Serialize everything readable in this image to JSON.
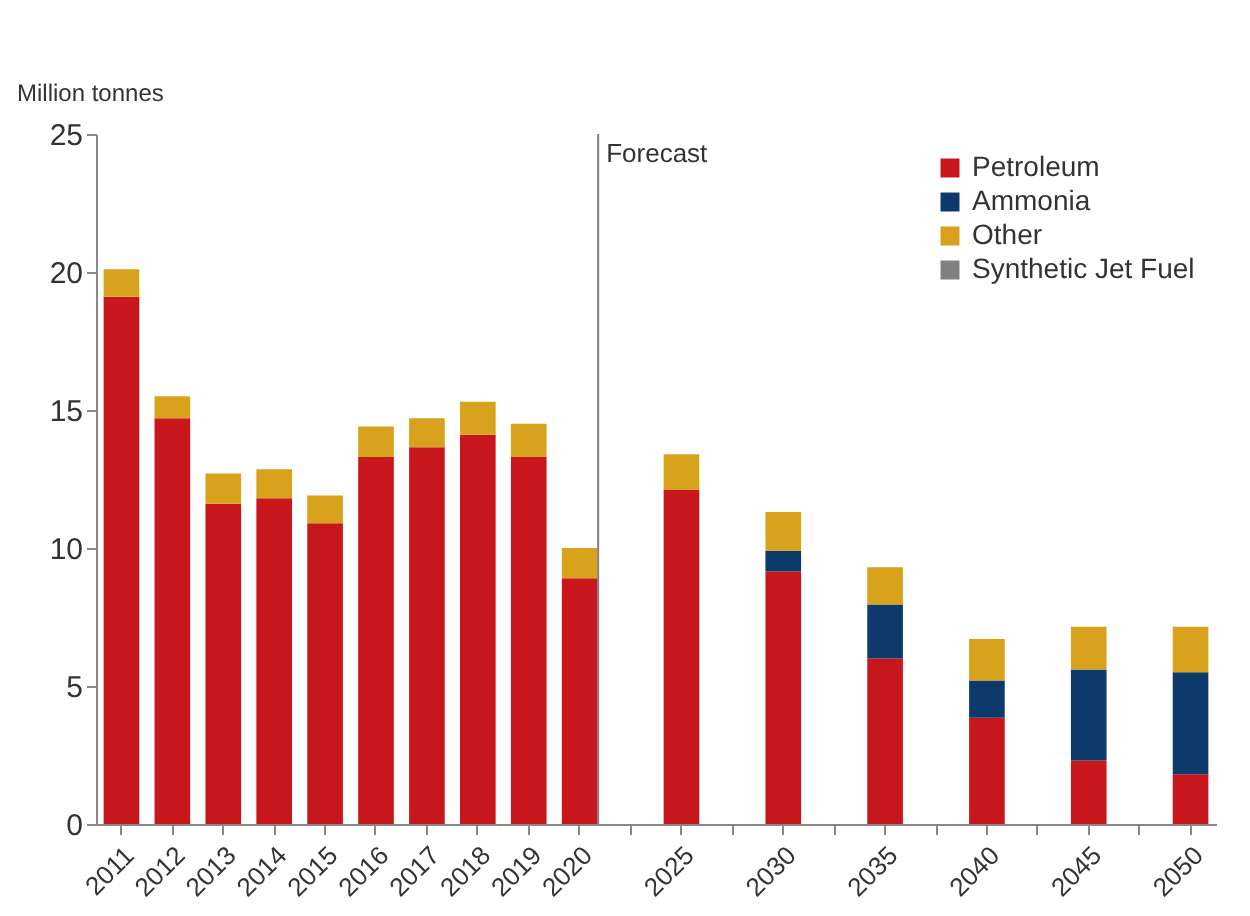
{
  "chart_data": {
    "type": "bar",
    "stacked": true,
    "ylabel": "Million tonnes",
    "categories": [
      "2011",
      "2012",
      "2013",
      "2014",
      "2015",
      "2016",
      "2017",
      "2018",
      "2019",
      "2020",
      null,
      "2025",
      null,
      "2030",
      null,
      "2035",
      null,
      "2040",
      null,
      "2045",
      null,
      "2050"
    ],
    "series": [
      {
        "name": "Petroleum",
        "color": "#c8161d",
        "values": [
          19.1,
          14.7,
          11.6,
          11.8,
          10.9,
          13.3,
          13.65,
          14.1,
          13.3,
          8.9,
          null,
          12.1,
          null,
          9.15,
          null,
          6.0,
          null,
          3.85,
          null,
          2.3,
          null,
          1.8
        ]
      },
      {
        "name": "Ammonia",
        "color": "#0c3a6b",
        "values": [
          null,
          null,
          null,
          null,
          null,
          null,
          null,
          null,
          null,
          null,
          null,
          null,
          null,
          0.75,
          null,
          1.95,
          null,
          1.35,
          null,
          3.3,
          null,
          3.7
        ]
      },
      {
        "name": "Other",
        "color": "#d8a21c",
        "values": [
          1.0,
          0.8,
          1.1,
          1.05,
          1.0,
          1.1,
          1.05,
          1.2,
          1.2,
          1.1,
          null,
          1.3,
          null,
          1.4,
          null,
          1.35,
          null,
          1.5,
          null,
          1.55,
          null,
          1.65
        ]
      },
      {
        "name": "Synthetic Jet Fuel",
        "color": "#808080",
        "values": [
          null,
          null,
          null,
          null,
          null,
          null,
          null,
          null,
          null,
          null,
          null,
          null,
          null,
          null,
          null,
          null,
          null,
          null,
          null,
          null,
          null,
          null
        ]
      }
    ],
    "ylim": [
      0,
      25
    ],
    "yticks": [
      0,
      5,
      10,
      15,
      20,
      25
    ],
    "grid": false,
    "legend": "top right",
    "ref_lines": [
      {
        "axis": "x",
        "value": "2020",
        "label": "Forecast",
        "color": "#808080"
      }
    ]
  }
}
